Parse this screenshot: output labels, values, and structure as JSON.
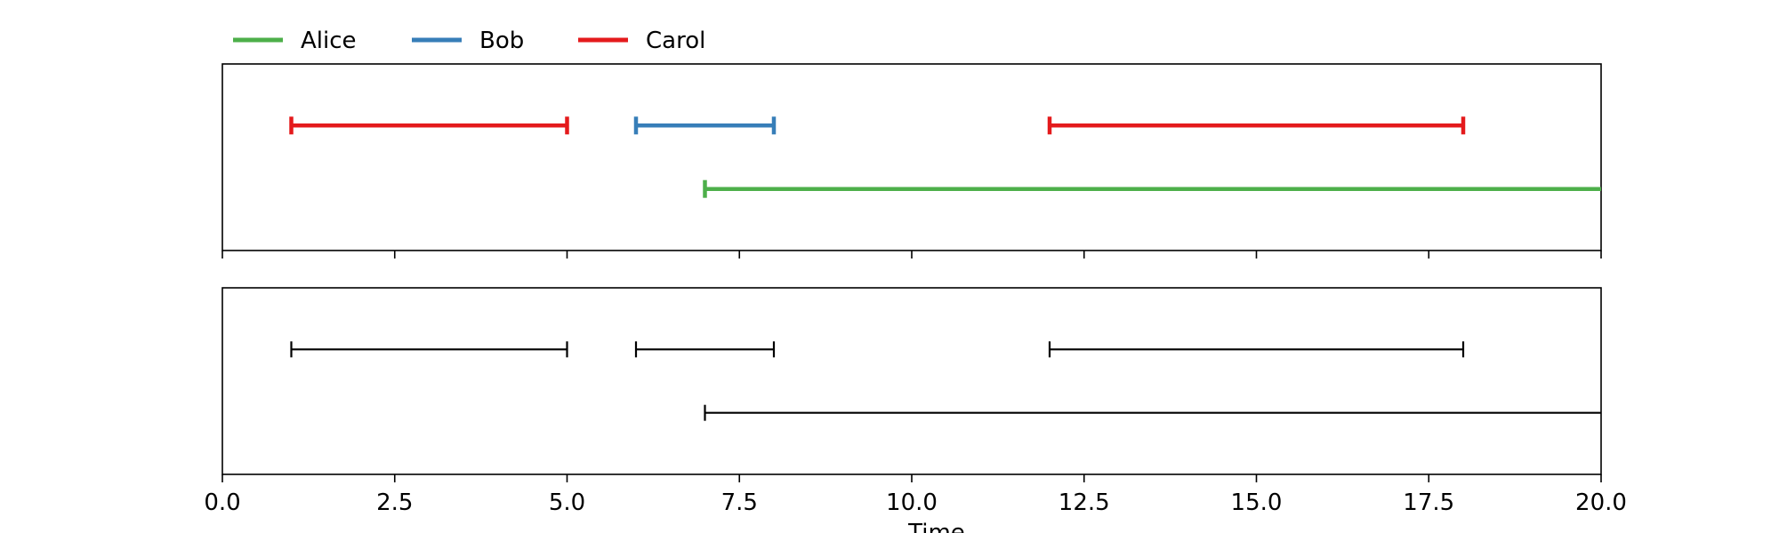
{
  "chart_data": {
    "type": "timeline",
    "xlabel": "Time",
    "xlim": [
      0,
      20
    ],
    "x_ticks": [
      0,
      2.5,
      5,
      7.5,
      10,
      12.5,
      15,
      17.5,
      20
    ],
    "x_tick_labels": [
      "0.0",
      "2.5",
      "5.0",
      "7.5",
      "10.0",
      "12.5",
      "15.0",
      "17.5",
      "20.0"
    ],
    "legend": {
      "placement": "top-left, above plot",
      "entries": [
        {
          "name": "Alice",
          "color": "#4daf4a"
        },
        {
          "name": "Bob",
          "color": "#377eb8"
        },
        {
          "name": "Carol",
          "color": "#e41a1c"
        }
      ]
    },
    "panels": [
      {
        "style": "colored",
        "intervals": [
          {
            "person": "Carol",
            "row": 0,
            "start": 1,
            "end": 5,
            "color": "#e41a1c"
          },
          {
            "person": "Bob",
            "row": 0,
            "start": 6,
            "end": 8,
            "color": "#377eb8"
          },
          {
            "person": "Carol",
            "row": 0,
            "start": 12,
            "end": 18,
            "color": "#e41a1c"
          },
          {
            "person": "Alice",
            "row": 1,
            "start": 7,
            "end": 20,
            "color": "#4daf4a"
          }
        ]
      },
      {
        "style": "black",
        "intervals": [
          {
            "row": 0,
            "start": 1,
            "end": 5,
            "color": "#000000"
          },
          {
            "row": 0,
            "start": 6,
            "end": 8,
            "color": "#000000"
          },
          {
            "row": 0,
            "start": 12,
            "end": 18,
            "color": "#000000"
          },
          {
            "row": 1,
            "start": 7,
            "end": 20,
            "color": "#000000"
          }
        ]
      }
    ]
  }
}
